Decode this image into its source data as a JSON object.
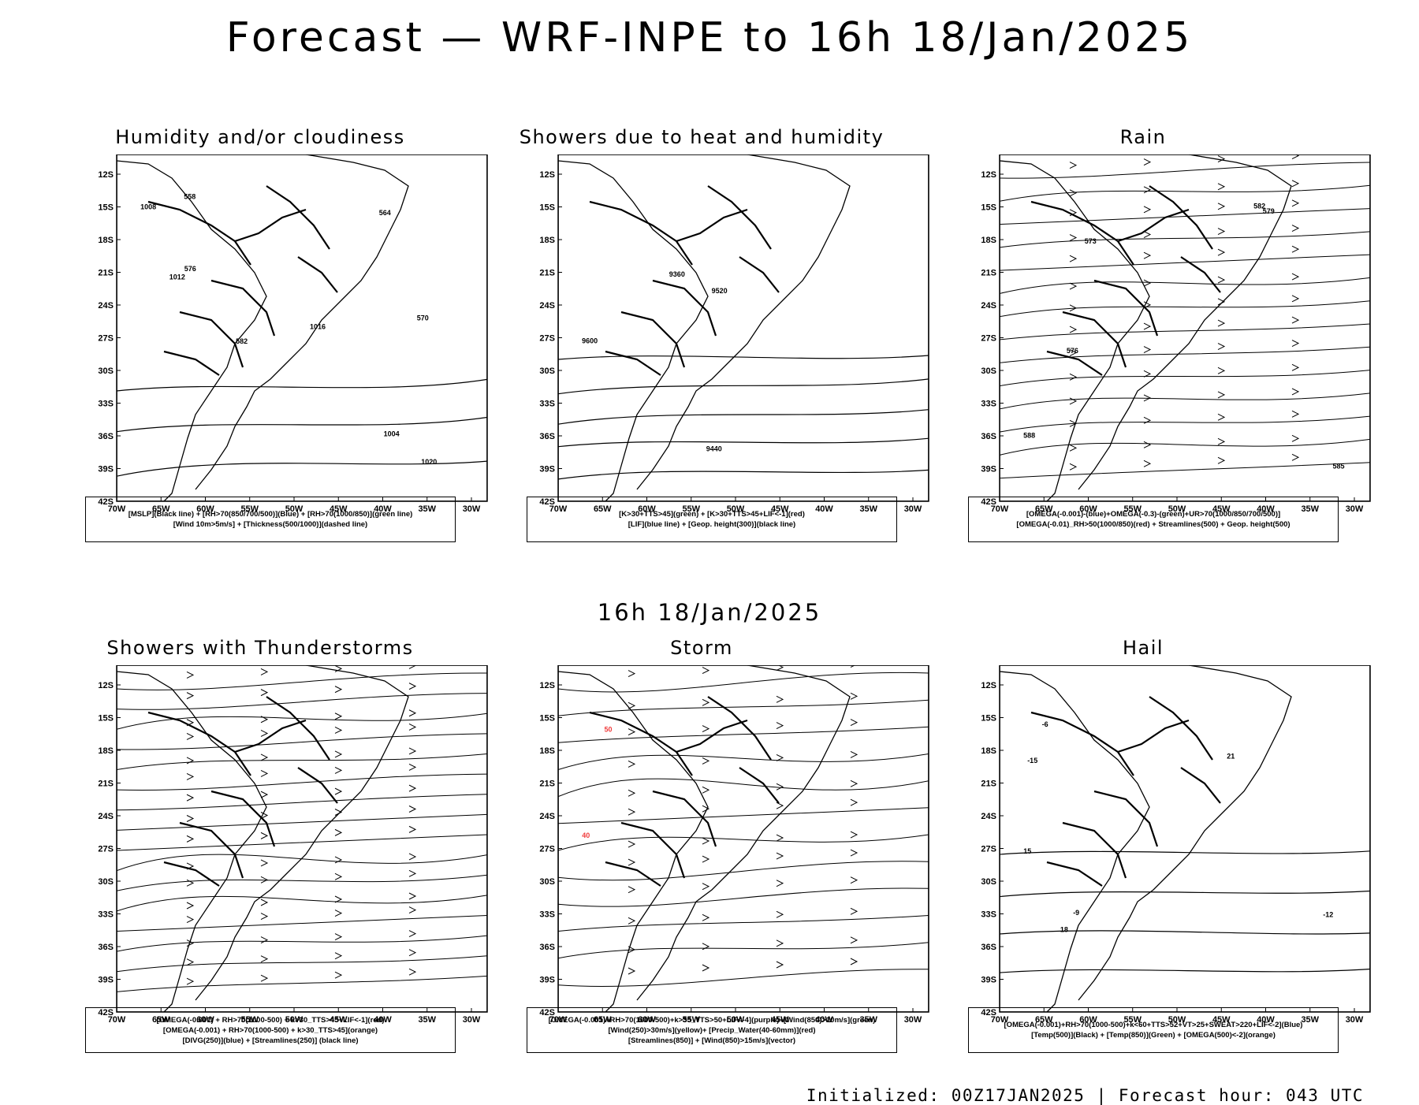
{
  "title": "Forecast — WRF-INPE to 16h 18/Jan/2025",
  "subtitle": "16h 18/Jan/2025",
  "footer": "Initialized: 00Z17JAN2025 | Forecast hour: 043 UTC",
  "axes": {
    "lat_labels": [
      "12S",
      "15S",
      "18S",
      "21S",
      "24S",
      "27S",
      "30S",
      "33S",
      "36S",
      "39S",
      "42S"
    ],
    "lon_labels": [
      "70W",
      "65W",
      "60W",
      "55W",
      "50W",
      "45W",
      "40W",
      "35W",
      "30W"
    ]
  },
  "colors": {
    "red": "#f03c3c",
    "green": "#22c722",
    "blue": "#2244ee",
    "lavender": "#9a9aee",
    "dark_teal": "#1f4e46",
    "yellow": "#e5de2f",
    "orange": "#e88a1a",
    "purple": "#9a1fd1"
  },
  "panels": [
    {
      "id": "humidity",
      "title": "Humidity and/or cloudiness",
      "legend": [
        "[MSLP](Black line) + [RH>70(850/700/500)](Blue) + [RH>70(1000/850)](green line)",
        "[Wind 10m>5m/s] + [Thickness(500/1000)](dashed line)"
      ],
      "labels": [
        "1008",
        "1012",
        "1016",
        "1004",
        "1020",
        "576",
        "582",
        "570",
        "564",
        "558"
      ]
    },
    {
      "id": "showers_heat",
      "title": "Showers due to heat and humidity",
      "legend": [
        "[K>30+TTS>45](green) + [K>30+TTS>45+LIF<-1](red)",
        "[LIF](blue line) + [Geop. height(300)](black line)"
      ],
      "labels": [
        "9600",
        "9520",
        "9440",
        "9360"
      ]
    },
    {
      "id": "rain",
      "title": "Rain",
      "legend": [
        "[OMEGA(-0.001)-(blue)+OMEGA(-0.3)-(green)+UR>70(1000/850/700/500)]",
        "[OMEGA(-0.01)_RH>50(1000/850)(red) + Streamlines(500) + Geop. height(500)"
      ],
      "labels": [
        "588",
        "585",
        "582",
        "579",
        "576",
        "573"
      ]
    },
    {
      "id": "thunderstorms",
      "title": "Showers with Thunderstorms",
      "legend": [
        "[OMEGA(-0.001) + RH>70(1000-500) + k>30_TTS>45+LIF<-1](red)",
        "[OMEGA(-0.001) + RH>70(1000-500) + k>30_TTS>45](orange)",
        "[DIVG(250)](blue) + [Streamlines(250)] (black line)"
      ],
      "labels": []
    },
    {
      "id": "storm",
      "title": "Storm",
      "legend": [
        "[OMEGA(-0.001)+RH>70(1000-500)+k>35_TTS>50+LIF<-4](purple)+[Wind(850)>10m/s](green)",
        "[Wind(250)>30m/s](yellow)+ [Precip_Water(40-60mm)](red)",
        "[Streamlines(850)] + [Wind(850)>15m/s](vector)"
      ],
      "labels": [
        "40",
        "50"
      ]
    },
    {
      "id": "hail",
      "title": "Hail",
      "legend": [
        "[OMEGA(-0.001)+RH>70(1000-500)+k<60+TTS>52+VT>25+SWEAT>220+LIF<-2](Blue)",
        "[Temp(500)](Black) + [Temp(850)](Green) + [OMEGA(500)<-2](orange)"
      ],
      "labels": [
        "15",
        "18",
        "21",
        "-6",
        "-9",
        "-12",
        "-15"
      ]
    }
  ]
}
